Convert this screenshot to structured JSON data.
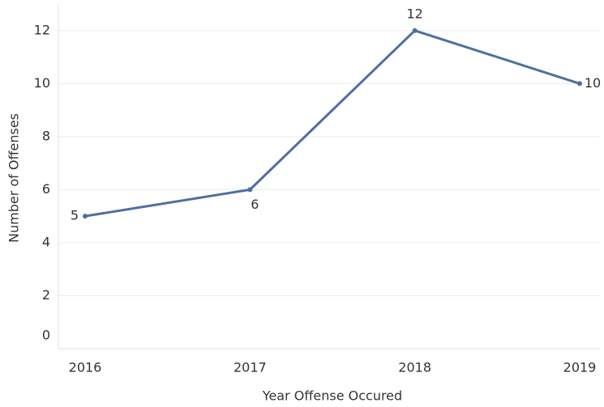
{
  "chart_data": {
    "type": "line",
    "x_label": "Year Offense Occured",
    "y_label": "Number of Offenses",
    "categories": [
      "2016",
      "2017",
      "2018",
      "2019"
    ],
    "series": [
      {
        "name": "Number of Offenses",
        "color": "#4e6fa3",
        "values": [
          5,
          6,
          12,
          10
        ]
      }
    ],
    "ylim": [
      0,
      13
    ],
    "yticks": [
      0,
      2,
      4,
      6,
      8,
      10,
      12
    ],
    "grid": true
  }
}
